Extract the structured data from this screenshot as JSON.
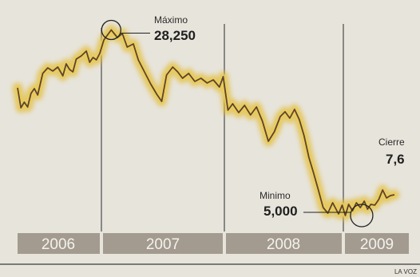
{
  "chart_data": {
    "type": "line",
    "x_categories": [
      "2006",
      "2007",
      "2008",
      "2009"
    ],
    "series": [
      {
        "values": [
          [
            0.0,
            21.0
          ],
          [
            0.04,
            18.5
          ],
          [
            0.08,
            19.2
          ],
          [
            0.12,
            18.6
          ],
          [
            0.16,
            20.3
          ],
          [
            0.2,
            20.9
          ],
          [
            0.24,
            20.1
          ],
          [
            0.3,
            22.8
          ],
          [
            0.36,
            23.5
          ],
          [
            0.42,
            23.1
          ],
          [
            0.48,
            23.6
          ],
          [
            0.54,
            22.5
          ],
          [
            0.58,
            24.0
          ],
          [
            0.62,
            23.3
          ],
          [
            0.66,
            23.0
          ],
          [
            0.7,
            24.6
          ],
          [
            0.76,
            25.0
          ],
          [
            0.82,
            25.6
          ],
          [
            0.86,
            24.2
          ],
          [
            0.9,
            24.8
          ],
          [
            0.94,
            24.5
          ],
          [
            0.98,
            25.3
          ],
          [
            1.02,
            27.0
          ],
          [
            1.08,
            28.25
          ],
          [
            1.13,
            27.3
          ],
          [
            1.17,
            27.8
          ],
          [
            1.21,
            26.1
          ],
          [
            1.26,
            26.5
          ],
          [
            1.3,
            24.5
          ],
          [
            1.35,
            23.0
          ],
          [
            1.4,
            21.5
          ],
          [
            1.45,
            20.2
          ],
          [
            1.49,
            19.3
          ],
          [
            1.53,
            22.6
          ],
          [
            1.58,
            23.6
          ],
          [
            1.62,
            23.0
          ],
          [
            1.66,
            22.2
          ],
          [
            1.71,
            22.8
          ],
          [
            1.76,
            21.8
          ],
          [
            1.81,
            22.2
          ],
          [
            1.86,
            21.6
          ],
          [
            1.91,
            22.0
          ],
          [
            1.96,
            21.1
          ],
          [
            1.99,
            22.4
          ],
          [
            2.03,
            18.2
          ],
          [
            2.07,
            19.0
          ],
          [
            2.12,
            17.9
          ],
          [
            2.17,
            18.8
          ],
          [
            2.22,
            17.6
          ],
          [
            2.27,
            18.6
          ],
          [
            2.32,
            16.8
          ],
          [
            2.37,
            14.3
          ],
          [
            2.42,
            15.5
          ],
          [
            2.47,
            17.4
          ],
          [
            2.51,
            18.0
          ],
          [
            2.55,
            17.2
          ],
          [
            2.59,
            18.3
          ],
          [
            2.63,
            17.0
          ],
          [
            2.67,
            15.0
          ],
          [
            2.71,
            12.3
          ],
          [
            2.75,
            10.3
          ],
          [
            2.79,
            8.2
          ],
          [
            2.83,
            6.0
          ],
          [
            2.87,
            5.3
          ],
          [
            2.91,
            6.6
          ],
          [
            2.96,
            5.2
          ],
          [
            2.99,
            6.3
          ],
          [
            3.03,
            5.0
          ],
          [
            3.08,
            6.4
          ],
          [
            3.14,
            5.6
          ],
          [
            3.2,
            6.6
          ],
          [
            3.26,
            6.0
          ],
          [
            3.32,
            6.8
          ],
          [
            3.37,
            5.8
          ],
          [
            3.42,
            6.4
          ],
          [
            3.48,
            6.3
          ],
          [
            3.54,
            7.0
          ],
          [
            3.6,
            8.2
          ],
          [
            3.66,
            7.2
          ],
          [
            3.72,
            7.5
          ],
          [
            3.78,
            7.6
          ]
        ]
      }
    ],
    "annotations": {
      "max": {
        "label": "Máximo",
        "value": "28,250",
        "x": 1.08,
        "y": 28.25
      },
      "min": {
        "label": "Minimo",
        "value": "5,000",
        "x": 3.28,
        "y": 5.0
      },
      "close": {
        "label": "Cierre",
        "value": "7,6",
        "x": 3.78,
        "y": 7.6
      }
    },
    "ylim": [
      3,
      31
    ],
    "xlim": [
      0,
      4
    ],
    "grid": false,
    "legend": "none",
    "colors": {
      "line": "#5a4530",
      "glow": "#e2bf41",
      "year_band": "#a39b90",
      "background": "#e7e4db"
    }
  },
  "credit": "LA VOZ"
}
